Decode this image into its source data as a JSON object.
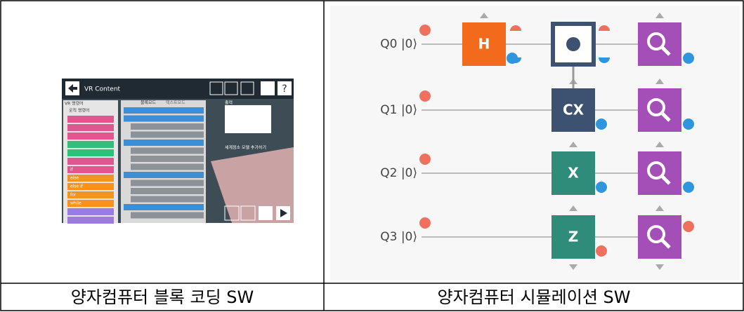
{
  "left": {
    "caption": "양자컴퓨터 블록 코딩 SW",
    "screenshot": {
      "title": "VR Content",
      "panel": "VR 명령어",
      "group": "로직 명령어",
      "tabs": [
        "블록모드",
        "텍스트모드"
      ],
      "output": "출력",
      "blocks": [
        "if",
        "else",
        "else if",
        "for",
        "while"
      ],
      "status": "세계정소 모델 추가하기"
    }
  },
  "right": {
    "caption": "양자컴퓨터 시뮬레이션 SW",
    "qubits": [
      "Q0 |0⟩",
      "Q1 |0⟩",
      "Q2 |0⟩",
      "Q3 |0⟩"
    ],
    "gates": [
      "H",
      "CX",
      "X",
      "Z"
    ]
  }
}
